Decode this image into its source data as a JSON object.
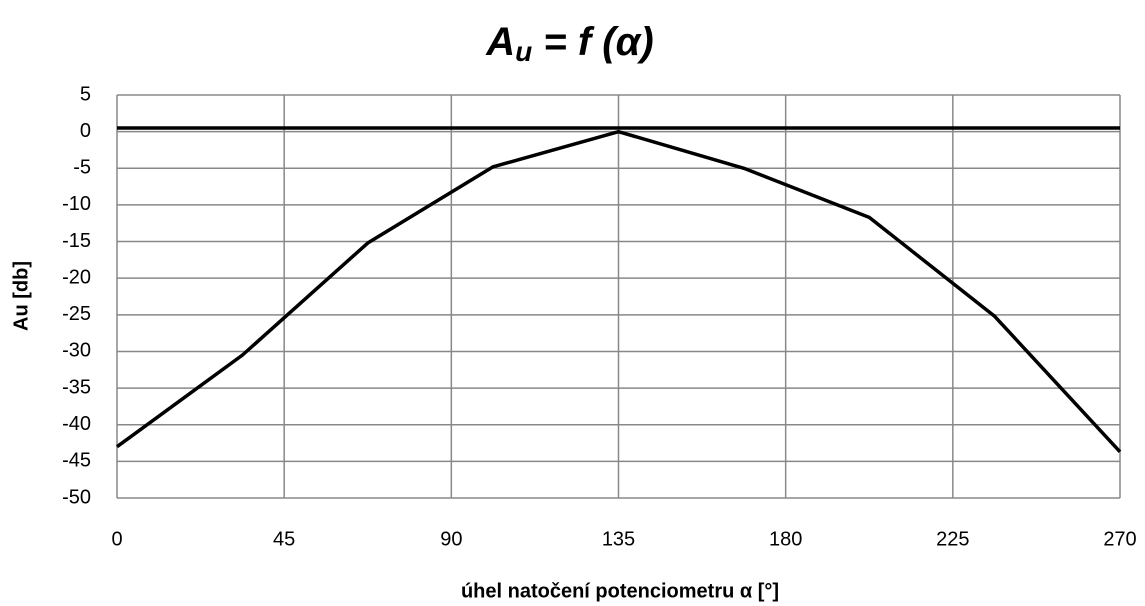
{
  "chart_data": {
    "type": "line",
    "title": {
      "main": "A",
      "sub": "u",
      "rest": " = f (α)"
    },
    "x_label": "úhel natočení potenciometru α [°]",
    "y_label": "Au [db]",
    "x": [
      0,
      33.75,
      67.5,
      101.25,
      135,
      168.75,
      202.5,
      236.25,
      270
    ],
    "series": [
      {
        "color": "#000000",
        "values": [
          -43,
          -30.5,
          -15.2,
          -4.8,
          0,
          -5,
          -11.7,
          -25.2,
          -43.7
        ]
      },
      {
        "color": "#000000",
        "values": [
          0.5,
          0.5,
          0.5,
          0.5,
          0.5,
          0.5,
          0.5,
          0.5,
          0.5
        ]
      }
    ],
    "xlim": [
      0,
      270
    ],
    "xticks": [
      0,
      45,
      90,
      135,
      180,
      225,
      270
    ],
    "ylim": [
      -50,
      5
    ],
    "yticks": [
      5,
      0,
      -5,
      -10,
      -15,
      -20,
      -25,
      -30,
      -35,
      -40,
      -45,
      -50
    ],
    "grid": true
  }
}
